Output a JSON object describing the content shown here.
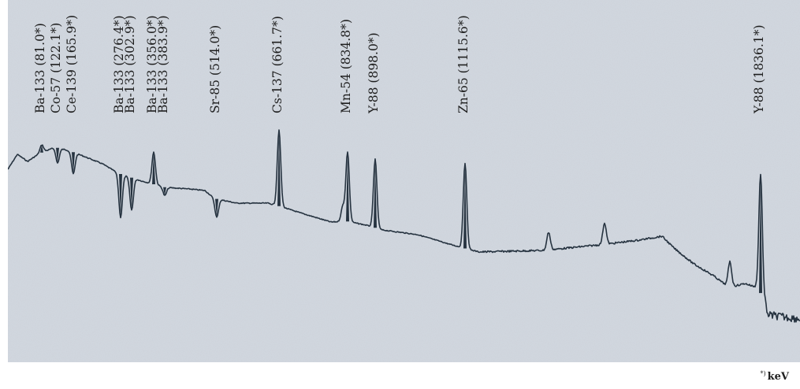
{
  "chart_data": {
    "type": "line",
    "title": "",
    "xlabel": "",
    "ylabel": "",
    "x_unit": "keV",
    "xlim": [
      0,
      1900
    ],
    "grid": false,
    "colors": {
      "line": "#263340",
      "background": "#d2d8e0"
    },
    "peaks": [
      {
        "label": "Ba-133 (81.0*)",
        "energy": 81.0,
        "height": 0.6
      },
      {
        "label": "Co-57 (122.1*)",
        "energy": 122.1,
        "height": 0.55
      },
      {
        "label": "Ce-139 (165.9*)",
        "energy": 165.9,
        "height": 0.52
      },
      {
        "label": "Ba-133 (276.4*)",
        "energy": 276.4,
        "height": 0.4
      },
      {
        "label": "Ba-133 (302.9*)",
        "energy": 302.9,
        "height": 0.42
      },
      {
        "label": "Ba-133 (356.0*)",
        "energy": 356.0,
        "height": 0.58
      },
      {
        "label": "Ba-133 (383.9*)",
        "energy": 383.9,
        "height": 0.46
      },
      {
        "label": "Sr-85 (514.0*)",
        "energy": 514.0,
        "height": 0.4
      },
      {
        "label": "Cs-137 (661.7*)",
        "energy": 661.7,
        "height": 0.64
      },
      {
        "label": "Mn-54 (834.8*)",
        "energy": 834.8,
        "height": 0.58
      },
      {
        "label": "Y-88 (898.0*)",
        "energy": 898.0,
        "height": 0.56
      },
      {
        "label": "Zn-65 (1115.6*)",
        "energy": 1115.6,
        "height": 0.55
      },
      {
        "label": "Y-88 (1836.1*)",
        "energy": 1836.1,
        "height": 0.52
      }
    ],
    "footnote": {
      "marker": "*)",
      "unit": "keV"
    }
  }
}
